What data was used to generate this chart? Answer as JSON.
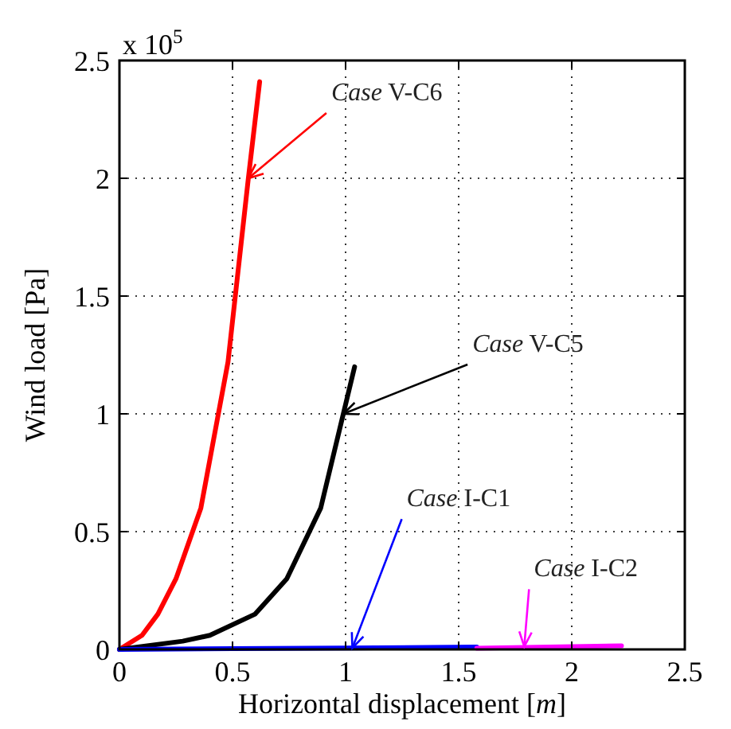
{
  "chart_data": {
    "type": "line",
    "xlabel": "Horizontal displacement [m]",
    "ylabel": "Wind load [Pa]",
    "xlim": [
      0,
      2.5
    ],
    "ylim": [
      0,
      2.5
    ],
    "xticks": [
      0,
      0.5,
      1,
      1.5,
      2,
      2.5
    ],
    "yticks": [
      0,
      0.5,
      1,
      1.5,
      2,
      2.5
    ],
    "grid": true,
    "line_style": "solid",
    "marker": "none",
    "series": [
      {
        "color": "#ff0000",
        "x": [
          0,
          0.1,
          0.17,
          0.25,
          0.36,
          0.48,
          0.57,
          0.62
        ],
        "values": [
          0,
          0.06,
          0.15,
          0.3,
          0.6,
          1.22,
          2.0,
          2.41
        ]
      },
      {
        "color": "#000000",
        "x": [
          0,
          0.28,
          0.4,
          0.6,
          0.74,
          0.89,
          0.99,
          1.04
        ],
        "values": [
          0,
          0.035,
          0.06,
          0.15,
          0.3,
          0.6,
          1.0,
          1.2
        ]
      },
      {
        "color": "#0000ff",
        "x": [
          0,
          0.5,
          1,
          1.58
        ],
        "values": [
          0,
          0.003,
          0.006,
          0.01
        ]
      },
      {
        "color": "#ff00ff",
        "x": [
          1.58,
          1.9,
          2.22
        ],
        "values": [
          0.005,
          0.01,
          0.015
        ]
      }
    ],
    "annotations": [
      {
        "text": "Case V-C6",
        "x": 0.57,
        "y": 2.0
      },
      {
        "text": "Case V-C5",
        "x": 0.99,
        "y": 1.0
      },
      {
        "text": "Case I-C1",
        "x": 1.03,
        "y": 0.006
      },
      {
        "text": "Case I-C2",
        "x": 1.79,
        "y": 0.012
      },
      "x 10$^{5}$"
    ]
  }
}
